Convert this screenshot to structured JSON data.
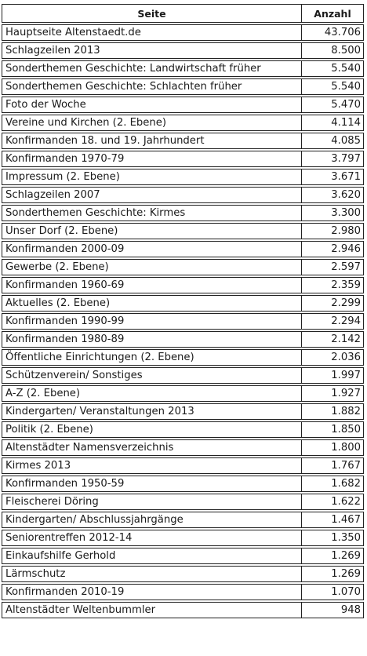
{
  "table": {
    "headers": {
      "page": "Seite",
      "count": "Anzahl"
    },
    "rows": [
      {
        "page": "Hauptseite Altenstaedt.de",
        "count": "43.706"
      },
      {
        "page": "Schlagzeilen 2013",
        "count": "8.500"
      },
      {
        "page": "Sonderthemen Geschichte: Landwirtschaft früher",
        "count": "5.540"
      },
      {
        "page": "Sonderthemen Geschichte: Schlachten früher",
        "count": "5.540"
      },
      {
        "page": "Foto der Woche",
        "count": "5.470"
      },
      {
        "page": "Vereine und Kirchen (2. Ebene)",
        "count": "4.114"
      },
      {
        "page": "Konfirmanden 18. und 19. Jahrhundert",
        "count": "4.085"
      },
      {
        "page": "Konfirmanden 1970-79",
        "count": "3.797"
      },
      {
        "page": "Impressum (2. Ebene)",
        "count": "3.671"
      },
      {
        "page": "Schlagzeilen 2007",
        "count": "3.620"
      },
      {
        "page": "Sonderthemen Geschichte: Kirmes",
        "count": "3.300"
      },
      {
        "page": "Unser Dorf (2. Ebene)",
        "count": "2.980"
      },
      {
        "page": "Konfirmanden 2000-09",
        "count": "2.946"
      },
      {
        "page": "Gewerbe (2. Ebene)",
        "count": "2.597"
      },
      {
        "page": "Konfirmanden 1960-69",
        "count": "2.359"
      },
      {
        "page": "Aktuelles (2. Ebene)",
        "count": "2.299"
      },
      {
        "page": "Konfirmanden 1990-99",
        "count": "2.294"
      },
      {
        "page": "Konfirmanden 1980-89",
        "count": "2.142"
      },
      {
        "page": "Öffentliche Einrichtungen (2. Ebene)",
        "count": "2.036"
      },
      {
        "page": "Schützenverein/ Sonstiges",
        "count": "1.997"
      },
      {
        "page": "A-Z (2. Ebene)",
        "count": "1.927"
      },
      {
        "page": "Kindergarten/ Veranstaltungen 2013",
        "count": "1.882"
      },
      {
        "page": "Politik (2. Ebene)",
        "count": "1.850"
      },
      {
        "page": "Altenstädter Namensverzeichnis",
        "count": "1.800"
      },
      {
        "page": "Kirmes 2013",
        "count": "1.767"
      },
      {
        "page": "Konfirmanden 1950-59",
        "count": "1.682"
      },
      {
        "page": "Fleischerei Döring",
        "count": "1.622"
      },
      {
        "page": "Kindergarten/ Abschlussjahrgänge",
        "count": "1.467"
      },
      {
        "page": "Seniorentreffen 2012-14",
        "count": "1.350"
      },
      {
        "page": "Einkaufshilfe Gerhold",
        "count": "1.269"
      },
      {
        "page": "Lärmschutz",
        "count": "1.269"
      },
      {
        "page": "Konfirmanden 2010-19",
        "count": "1.070"
      },
      {
        "page": "Altenstädter Weltenbummler",
        "count": "948"
      }
    ]
  }
}
